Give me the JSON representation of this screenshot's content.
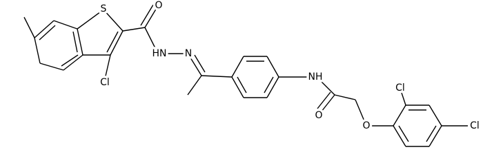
{
  "atoms": [
    {
      "label": "S"
    },
    {
      "label": "O"
    },
    {
      "label": "HN"
    },
    {
      "label": "N"
    },
    {
      "label": "Cl"
    },
    {
      "label": "NH"
    },
    {
      "label": "O"
    },
    {
      "label": "O"
    },
    {
      "label": "Cl"
    },
    {
      "label": "Cl"
    }
  ]
}
